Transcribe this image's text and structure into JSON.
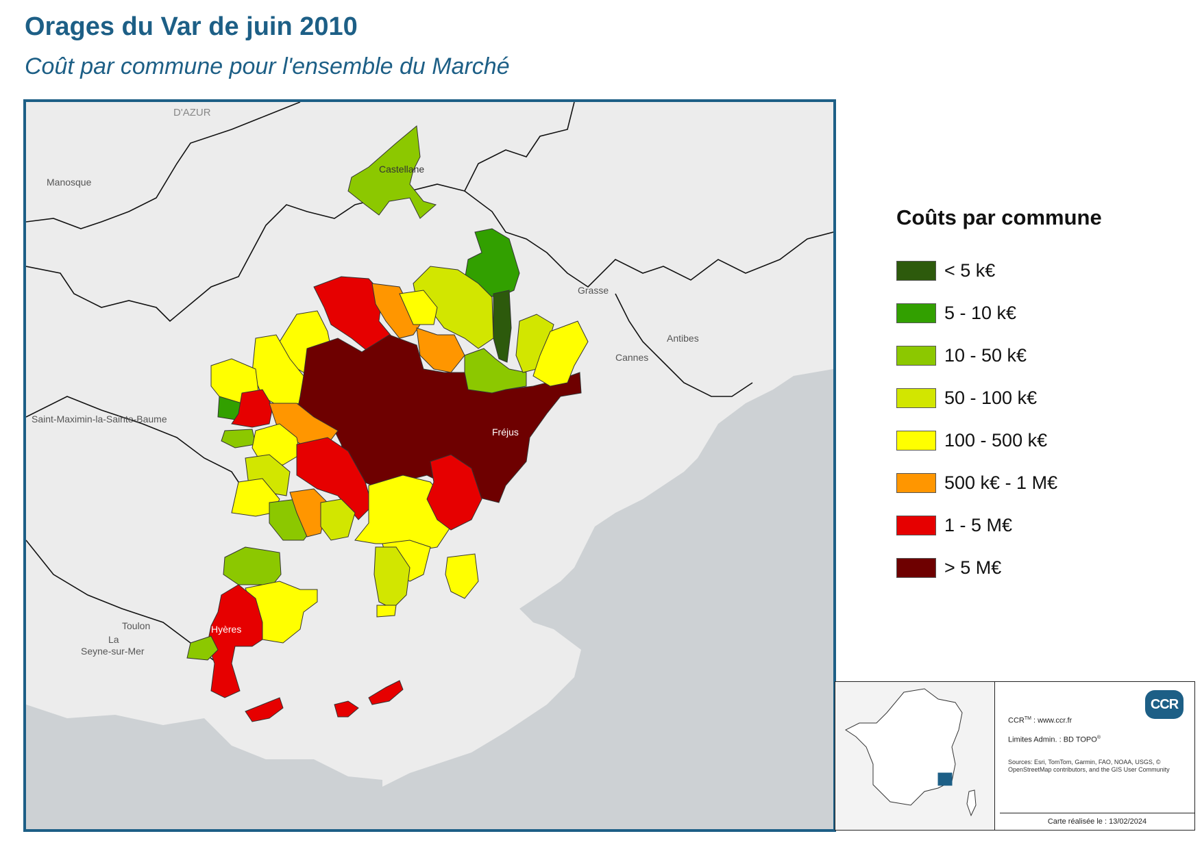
{
  "title": "Orages du Var de juin 2010",
  "subtitle": "Coût par commune pour l'ensemble du Marché",
  "map": {
    "place_labels": {
      "dazur": "D'AZUR",
      "manosque": "Manosque",
      "castellane": "Castellane",
      "grasse": "Grasse",
      "antibes": "Antibes",
      "cannes": "Cannes",
      "frejus": "Fréjus",
      "saint_maximin": "Saint-Maximin-la-Sainte-Baume",
      "toulon": "Toulon",
      "la": "La",
      "seyne": "Seyne-sur-Mer",
      "hyeres": "Hyères"
    }
  },
  "legend": {
    "title": "Coûts par commune",
    "items": [
      {
        "label": "< 5 k€",
        "color": "#2d5a0c"
      },
      {
        "label": "5 - 10 k€",
        "color": "#32a000"
      },
      {
        "label": "10 - 50 k€",
        "color": "#8cc800"
      },
      {
        "label": "50 - 100 k€",
        "color": "#d2e600"
      },
      {
        "label": "100 - 500 k€",
        "color": "#ffff00"
      },
      {
        "label": "500 k€ - 1 M€",
        "color": "#ff9600"
      },
      {
        "label": "1 - 5 M€",
        "color": "#e60000"
      },
      {
        "label": "> 5 M€",
        "color": "#6e0000"
      }
    ]
  },
  "credits": {
    "ccr_prefix": "CCR",
    "ccr_tm": "TM",
    "ccr_site": " : www.ccr.fr",
    "limits_prefix": "Limites Admin. : BD TOPO",
    "limits_reg": "®",
    "sources": "Sources: Esri, TomTom, Garmin, FAO, NOAA, USGS, © OpenStreetMap contributors, and the GIS User Community",
    "date": "Carte réalisée le : 13/02/2024",
    "logo": "CCR"
  }
}
